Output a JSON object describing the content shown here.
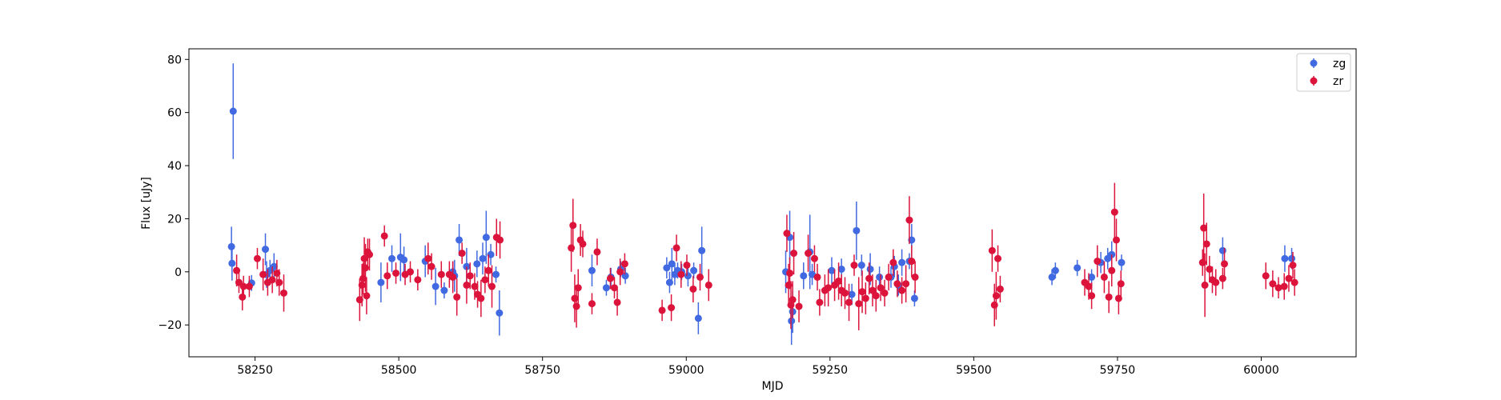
{
  "chart_data": {
    "type": "scatter",
    "xlabel": "MJD",
    "ylabel": "Flux [uJy]",
    "xlim": [
      58135,
      60165
    ],
    "ylim": [
      -32,
      84
    ],
    "xticks": [
      58250,
      58500,
      58750,
      59000,
      59250,
      59500,
      59750,
      60000
    ],
    "yticks": [
      -20,
      0,
      20,
      40,
      60,
      80
    ],
    "grid": false,
    "legend_position": "top-right",
    "series": [
      {
        "name": "zg",
        "color": "#4169e1",
        "points": [
          [
            58209,
            9.5,
            7.5
          ],
          [
            58210,
            3.2,
            6.5
          ],
          [
            58212,
            60.5,
            18
          ],
          [
            58244,
            -4.2,
            3
          ],
          [
            58268,
            8.5,
            6
          ],
          [
            58270,
            -1,
            5
          ],
          [
            58276,
            0.5,
            4
          ],
          [
            58283,
            2,
            5
          ],
          [
            58469,
            -4,
            7.5
          ],
          [
            58488,
            5,
            5
          ],
          [
            58503,
            5.5,
            9
          ],
          [
            58509,
            4.5,
            5
          ],
          [
            58546,
            4,
            6
          ],
          [
            58564,
            -5.5,
            7
          ],
          [
            58579,
            -7,
            3
          ],
          [
            58594,
            0,
            4
          ],
          [
            58597,
            -1.5,
            6
          ],
          [
            58605,
            12,
            6
          ],
          [
            58618,
            2,
            7
          ],
          [
            58636,
            3,
            5
          ],
          [
            58646,
            5,
            6
          ],
          [
            58652,
            13,
            10
          ],
          [
            58660,
            6.5,
            4
          ],
          [
            58669,
            -1,
            3
          ],
          [
            58675,
            -15.5,
            8.5
          ],
          [
            58836,
            0.5,
            6
          ],
          [
            58861,
            -6,
            3
          ],
          [
            58869,
            -2,
            3.5
          ],
          [
            58886,
            1,
            3
          ],
          [
            58894,
            -1.5,
            3
          ],
          [
            58966,
            1.5,
            4
          ],
          [
            58971,
            -4,
            4
          ],
          [
            58975,
            3,
            6
          ],
          [
            58980,
            -1,
            4
          ],
          [
            58985,
            0.5,
            3
          ],
          [
            58992,
            0,
            3
          ],
          [
            59003,
            -1.5,
            4
          ],
          [
            59013,
            0.5,
            3
          ],
          [
            59021,
            -17.5,
            6
          ],
          [
            59027,
            8,
            9
          ],
          [
            59173,
            0,
            8
          ],
          [
            59180,
            13,
            10
          ],
          [
            59183,
            -18.5,
            9
          ],
          [
            59185,
            -15,
            8
          ],
          [
            59204,
            -1.5,
            5
          ],
          [
            59215,
            7.5,
            14
          ],
          [
            59219,
            -1,
            4
          ],
          [
            59253,
            0.5,
            5
          ],
          [
            59270,
            1,
            4
          ],
          [
            59288,
            -8.5,
            4
          ],
          [
            59296,
            15.5,
            11
          ],
          [
            59305,
            2.5,
            4
          ],
          [
            59320,
            1,
            6
          ],
          [
            59336,
            -2,
            4
          ],
          [
            59356,
            -2,
            4
          ],
          [
            59362,
            2,
            4
          ],
          [
            59369,
            -5,
            4
          ],
          [
            59375,
            3.5,
            5
          ],
          [
            59388,
            4,
            3
          ],
          [
            59392,
            12,
            6
          ],
          [
            59397,
            -10,
            3
          ],
          [
            59636,
            -2,
            3
          ],
          [
            59642,
            0.5,
            3
          ],
          [
            59680,
            1.5,
            3
          ],
          [
            59705,
            -2,
            3
          ],
          [
            59721,
            3.5,
            4
          ],
          [
            59733,
            5,
            4
          ],
          [
            59740,
            6.5,
            5
          ],
          [
            59757,
            3.5,
            3
          ],
          [
            59933,
            8,
            5
          ],
          [
            60041,
            5,
            5
          ],
          [
            60053,
            5,
            4
          ]
        ]
      },
      {
        "name": "zr",
        "color": "#dc143c",
        "points": [
          [
            58218,
            0.5,
            6
          ],
          [
            58222,
            -4,
            4
          ],
          [
            58228,
            -9.5,
            5
          ],
          [
            58230,
            -5.5,
            4
          ],
          [
            58240,
            -5.5,
            4
          ],
          [
            58254,
            5,
            4
          ],
          [
            58264,
            -1,
            6
          ],
          [
            58272,
            -4,
            5
          ],
          [
            58280,
            -3,
            5
          ],
          [
            58288,
            -0.5,
            5
          ],
          [
            58292,
            -4,
            5
          ],
          [
            58300,
            -8,
            7
          ],
          [
            58432,
            -10.5,
            8
          ],
          [
            58436,
            -5,
            8
          ],
          [
            58438,
            -2.5,
            6
          ],
          [
            58440,
            5,
            8
          ],
          [
            58442,
            1.5,
            9
          ],
          [
            58444,
            -9,
            7
          ],
          [
            58446,
            7.5,
            5
          ],
          [
            58449,
            6.5,
            6
          ],
          [
            58475,
            13.5,
            4
          ],
          [
            58480,
            -1.5,
            5
          ],
          [
            58495,
            -0.5,
            4
          ],
          [
            58511,
            -1,
            4
          ],
          [
            58520,
            0,
            4
          ],
          [
            58533,
            -3,
            4
          ],
          [
            58551,
            5,
            6
          ],
          [
            58557,
            2,
            5
          ],
          [
            58574,
            -1,
            5
          ],
          [
            58588,
            -1,
            5
          ],
          [
            58594,
            -2,
            6
          ],
          [
            58601,
            -9.5,
            7
          ],
          [
            58610,
            7,
            4
          ],
          [
            58618,
            -5,
            7
          ],
          [
            58624,
            -1.5,
            5
          ],
          [
            58632,
            -5.5,
            5
          ],
          [
            58637,
            -8.5,
            5
          ],
          [
            58643,
            -10,
            7
          ],
          [
            58650,
            -3,
            5
          ],
          [
            58656,
            0.5,
            6
          ],
          [
            58662,
            -5.5,
            8
          ],
          [
            58670,
            13,
            7
          ],
          [
            58676,
            12,
            7
          ],
          [
            58800,
            9,
            9
          ],
          [
            58803,
            17.5,
            10
          ],
          [
            58806,
            -10,
            9
          ],
          [
            58809,
            -13,
            8
          ],
          [
            58812,
            -6,
            7
          ],
          [
            58816,
            12,
            6
          ],
          [
            58820,
            10.5,
            5
          ],
          [
            58836,
            -12,
            4
          ],
          [
            58845,
            7.5,
            5
          ],
          [
            58868,
            -2.5,
            4
          ],
          [
            58875,
            -6,
            4
          ],
          [
            58880,
            -11.5,
            5
          ],
          [
            58885,
            0,
            5
          ],
          [
            58893,
            3,
            4
          ],
          [
            58958,
            -14.5,
            4
          ],
          [
            58974,
            -13.5,
            5
          ],
          [
            58983,
            9,
            5
          ],
          [
            58991,
            -1,
            5
          ],
          [
            59001,
            2.5,
            4
          ],
          [
            59012,
            -6.5,
            5
          ],
          [
            59024,
            -2,
            5
          ],
          [
            59039,
            -5,
            6
          ],
          [
            59175,
            14.5,
            7
          ],
          [
            59178,
            -5,
            8
          ],
          [
            59180,
            -0.5,
            6
          ],
          [
            59182,
            -12.5,
            9
          ],
          [
            59185,
            -10.5,
            7
          ],
          [
            59187,
            7,
            8
          ],
          [
            59196,
            -13,
            6
          ],
          [
            59212,
            7,
            7
          ],
          [
            59223,
            5,
            5
          ],
          [
            59228,
            -2,
            5
          ],
          [
            59232,
            -11.5,
            5
          ],
          [
            59241,
            -7,
            6
          ],
          [
            59247,
            -6,
            7
          ],
          [
            59258,
            -5,
            6
          ],
          [
            59265,
            -3.5,
            7
          ],
          [
            59270,
            -7,
            6
          ],
          [
            59276,
            -8,
            6
          ],
          [
            59283,
            -11.5,
            7
          ],
          [
            59292,
            2.5,
            4
          ],
          [
            59300,
            -12,
            10
          ],
          [
            59306,
            -7.5,
            8
          ],
          [
            59312,
            -10,
            6
          ],
          [
            59318,
            -2.5,
            6
          ],
          [
            59324,
            -7,
            6
          ],
          [
            59330,
            -9,
            6
          ],
          [
            59338,
            -6,
            5
          ],
          [
            59345,
            -8,
            5
          ],
          [
            59352,
            -2,
            5
          ],
          [
            59360,
            3.5,
            5
          ],
          [
            59367,
            -4.5,
            5
          ],
          [
            59375,
            -7,
            5
          ],
          [
            59382,
            -4.5,
            7
          ],
          [
            59388,
            19.5,
            9
          ],
          [
            59392,
            4,
            6
          ],
          [
            59398,
            -2,
            6
          ],
          [
            59532,
            8,
            8
          ],
          [
            59536,
            -12.5,
            8
          ],
          [
            59539,
            -9,
            9
          ],
          [
            59542,
            5,
            5
          ],
          [
            59546,
            -6.5,
            5
          ],
          [
            59693,
            -4,
            5
          ],
          [
            59700,
            -5.5,
            5
          ],
          [
            59705,
            -9,
            5
          ],
          [
            59715,
            4,
            6
          ],
          [
            59727,
            -2,
            6
          ],
          [
            59735,
            -9.5,
            6
          ],
          [
            59740,
            0.5,
            6
          ],
          [
            59745,
            22.5,
            11
          ],
          [
            59748,
            12,
            8
          ],
          [
            59752,
            -10,
            6
          ],
          [
            59756,
            -4.5,
            5
          ],
          [
            59898,
            3.5,
            5
          ],
          [
            59900,
            16.5,
            13
          ],
          [
            59902,
            -5,
            12
          ],
          [
            59905,
            10.5,
            8
          ],
          [
            59910,
            1,
            5
          ],
          [
            59915,
            -3,
            5
          ],
          [
            59921,
            -4,
            5
          ],
          [
            59933,
            -2.5,
            4
          ],
          [
            59936,
            3,
            6
          ],
          [
            60008,
            -1.5,
            5
          ],
          [
            60020,
            -4.5,
            5
          ],
          [
            60030,
            -6,
            4
          ],
          [
            60040,
            -5.5,
            5
          ],
          [
            60048,
            -2.5,
            5
          ],
          [
            60055,
            2.5,
            5
          ],
          [
            60058,
            -4,
            5
          ]
        ]
      }
    ]
  }
}
